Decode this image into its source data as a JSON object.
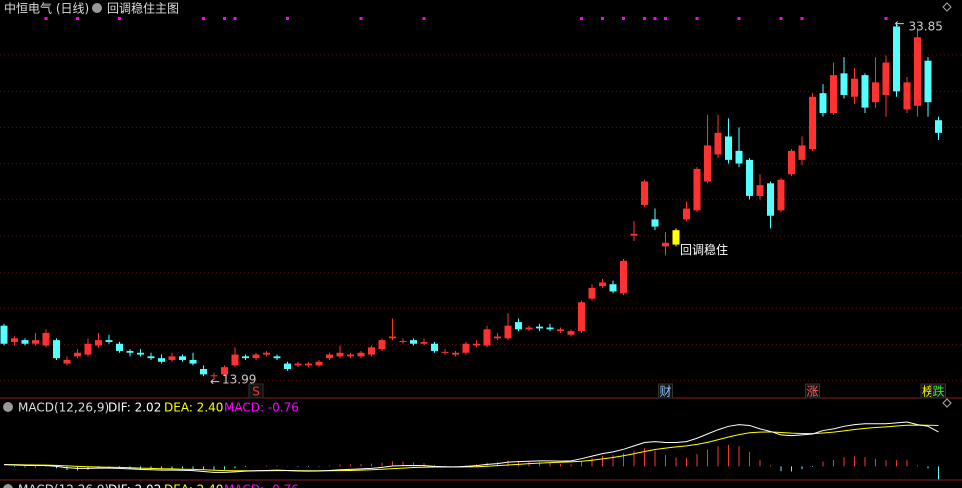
{
  "chart_data": [
    {
      "type": "candlestick",
      "title": "中恒电气 (日线)",
      "subtitle": "回调稳住主图",
      "open": [
        17.0,
        16.1,
        16.2,
        16.0,
        15.9,
        16.2,
        14.9,
        15.3,
        15.4,
        15.9,
        16.2,
        16.0,
        15.6,
        15.5,
        15.3,
        15.2,
        15.1,
        15.3,
        15.1,
        14.6,
        14.2,
        14.3,
        14.8,
        15.3,
        15.2,
        15.4,
        15.3,
        14.9,
        14.8,
        14.8,
        14.8,
        15.2,
        15.3,
        15.3,
        15.3,
        15.4,
        15.7,
        16.3,
        16.1,
        16.2,
        16.0,
        16.0,
        15.5,
        15.4,
        15.5,
        15.9,
        15.9,
        16.3,
        16.3,
        17.2,
        16.8,
        16.95,
        16.9,
        16.7,
        16.5,
        16.7,
        18.5,
        19.2,
        19.3,
        18.8,
        22.0,
        23.7,
        22.9,
        21.4,
        21.5,
        22.9,
        23.4,
        25.0,
        26.5,
        27.5,
        26.7,
        26.2,
        24.2,
        24.9,
        23.4,
        25.4,
        26.2,
        26.8,
        29.9,
        28.8,
        31.0,
        29.7,
        30.9,
        29.4,
        29.8,
        33.6,
        29.0,
        29.2,
        31.7,
        28.4
      ],
      "high": [
        17.1,
        16.4,
        16.3,
        16.6,
        16.8,
        16.3,
        15.3,
        15.7,
        16.3,
        16.6,
        16.5,
        16.1,
        15.7,
        15.7,
        15.5,
        15.4,
        15.5,
        15.4,
        15.5,
        14.8,
        14.4,
        14.8,
        15.8,
        15.4,
        15.5,
        15.6,
        15.4,
        15.0,
        15.0,
        15.0,
        15.1,
        15.5,
        15.9,
        15.5,
        15.6,
        15.9,
        16.3,
        17.4,
        16.3,
        16.3,
        16.3,
        16.1,
        15.7,
        15.6,
        16.1,
        16.2,
        17.0,
        16.6,
        17.7,
        17.4,
        17.0,
        17.1,
        17.1,
        16.9,
        16.8,
        18.4,
        19.3,
        19.6,
        19.5,
        20.7,
        22.8,
        25.1,
        23.5,
        22.2,
        22.4,
        23.9,
        25.8,
        28.7,
        28.7,
        28.5,
        28.0,
        26.3,
        25.4,
        25.0,
        25.2,
        26.8,
        27.5,
        29.9,
        30.4,
        31.6,
        31.9,
        31.3,
        31.0,
        31.9,
        32.0,
        33.85,
        30.8,
        33.5,
        31.9,
        28.6
      ],
      "low": [
        15.9,
        15.9,
        15.9,
        15.9,
        15.8,
        15.1,
        14.8,
        15.2,
        15.3,
        15.8,
        16.0,
        15.5,
        15.3,
        15.3,
        15.1,
        14.9,
        15.0,
        15.0,
        14.8,
        14.2,
        13.99,
        14.2,
        14.7,
        15.1,
        15.1,
        15.3,
        15.1,
        14.5,
        14.7,
        14.7,
        14.7,
        15.1,
        15.2,
        15.2,
        15.2,
        15.3,
        15.6,
        16.2,
        16.0,
        15.9,
        15.9,
        15.5,
        15.4,
        15.3,
        15.4,
        15.8,
        15.8,
        16.2,
        16.2,
        16.7,
        16.7,
        16.7,
        16.7,
        16.6,
        16.4,
        16.6,
        18.4,
        19.1,
        18.8,
        18.7,
        21.7,
        23.6,
        22.3,
        20.9,
        21.4,
        22.8,
        23.3,
        24.9,
        26.3,
        26.0,
        25.8,
        24.0,
        24.0,
        22.4,
        23.3,
        25.3,
        25.9,
        26.7,
        28.6,
        28.7,
        29.6,
        29.3,
        28.8,
        29.1,
        28.6,
        29.7,
        28.8,
        28.6,
        28.6,
        27.3
      ],
      "close": [
        16.0,
        16.3,
        16.0,
        16.2,
        16.6,
        15.2,
        15.1,
        15.5,
        16.0,
        16.2,
        16.1,
        15.6,
        15.5,
        15.4,
        15.2,
        15.0,
        15.3,
        15.1,
        14.9,
        14.3,
        14.25,
        14.7,
        15.4,
        15.2,
        15.4,
        15.5,
        15.2,
        14.6,
        14.9,
        14.9,
        15.0,
        15.4,
        15.5,
        15.4,
        15.5,
        15.8,
        16.2,
        16.4,
        16.15,
        16.0,
        16.1,
        15.6,
        15.55,
        15.5,
        16.0,
        16.0,
        16.8,
        16.4,
        17.0,
        16.8,
        16.9,
        16.85,
        16.8,
        16.8,
        16.7,
        18.3,
        19.1,
        19.4,
        18.9,
        20.6,
        22.1,
        25.0,
        22.5,
        21.6,
        22.3,
        23.5,
        25.7,
        27.0,
        27.7,
        26.2,
        26.0,
        24.2,
        24.8,
        23.1,
        25.1,
        26.7,
        27.0,
        29.7,
        28.8,
        30.9,
        29.8,
        30.7,
        29.1,
        30.5,
        31.6,
        30.0,
        30.5,
        33.0,
        29.4,
        27.7
      ],
      "up_color": "#ff3232",
      "down_color": "#54ffff",
      "highlight": {
        "index": 64,
        "color": "#ffff00",
        "text": "回调稳住"
      },
      "max_label": {
        "index": 85,
        "value": 33.85
      },
      "min_label": {
        "index": 20,
        "value": 13.99
      },
      "signals": {
        "color": "#ff00ff",
        "indices": [
          4,
          7,
          11,
          19,
          21,
          22,
          27,
          34,
          40,
          55,
          57,
          59,
          61,
          62,
          63,
          66,
          70,
          74,
          76,
          84
        ]
      },
      "events": [
        {
          "index": 24,
          "text": "S",
          "color": "#ff3232"
        },
        {
          "index": 63,
          "text": "财",
          "color": "#8cc8ff"
        },
        {
          "index": 77,
          "text": "涨",
          "color": "#ff6060"
        },
        {
          "index": 88,
          "text": "榜",
          "color": "#ffff00"
        },
        {
          "index": 89,
          "text": "跌",
          "color": "#40e040"
        }
      ],
      "ylim": [
        12.99,
        34.07
      ]
    },
    {
      "type": "macd",
      "title": "MACD(12,26,9)",
      "dif_label": {
        "value": 2.02,
        "label": "DIF: 2.02"
      },
      "dea_label": {
        "value": 2.4,
        "label": "DEA: 2.40"
      },
      "macd_label": {
        "value": -0.76,
        "label": "MACD: -0.76"
      },
      "dif": [
        0.1,
        0.08,
        0.06,
        0.05,
        0.05,
        0.0,
        -0.08,
        -0.12,
        -0.12,
        -0.1,
        -0.1,
        -0.12,
        -0.15,
        -0.18,
        -0.2,
        -0.22,
        -0.22,
        -0.23,
        -0.25,
        -0.3,
        -0.35,
        -0.35,
        -0.32,
        -0.28,
        -0.26,
        -0.24,
        -0.22,
        -0.24,
        -0.27,
        -0.28,
        -0.27,
        -0.24,
        -0.2,
        -0.18,
        -0.15,
        -0.12,
        -0.06,
        0.02,
        0.04,
        0.05,
        0.04,
        0.0,
        -0.02,
        -0.03,
        0.0,
        0.04,
        0.12,
        0.16,
        0.25,
        0.28,
        0.3,
        0.32,
        0.32,
        0.31,
        0.32,
        0.45,
        0.6,
        0.75,
        0.85,
        1.0,
        1.2,
        1.4,
        1.45,
        1.4,
        1.4,
        1.45,
        1.65,
        1.9,
        2.15,
        2.35,
        2.45,
        2.4,
        2.2,
        2.05,
        1.85,
        1.8,
        1.85,
        1.9,
        2.1,
        2.2,
        2.35,
        2.45,
        2.5,
        2.5,
        2.5,
        2.55,
        2.6,
        2.45,
        2.35,
        2.02
      ],
      "dea": [
        0.1,
        0.1,
        0.09,
        0.08,
        0.07,
        0.06,
        0.03,
        0.0,
        -0.02,
        -0.04,
        -0.05,
        -0.06,
        -0.08,
        -0.1,
        -0.12,
        -0.14,
        -0.15,
        -0.17,
        -0.18,
        -0.2,
        -0.23,
        -0.25,
        -0.26,
        -0.26,
        -0.26,
        -0.26,
        -0.25,
        -0.25,
        -0.25,
        -0.26,
        -0.26,
        -0.26,
        -0.25,
        -0.24,
        -0.22,
        -0.2,
        -0.17,
        -0.13,
        -0.1,
        -0.07,
        -0.05,
        -0.04,
        -0.04,
        -0.04,
        -0.03,
        -0.02,
        0.01,
        0.04,
        0.08,
        0.12,
        0.16,
        0.19,
        0.22,
        0.24,
        0.26,
        0.3,
        0.36,
        0.44,
        0.52,
        0.62,
        0.74,
        0.87,
        0.99,
        1.07,
        1.14,
        1.2,
        1.29,
        1.41,
        1.56,
        1.72,
        1.86,
        1.97,
        2.01,
        2.02,
        1.99,
        1.95,
        1.93,
        1.92,
        1.96,
        2.01,
        2.08,
        2.16,
        2.23,
        2.28,
        2.32,
        2.37,
        2.41,
        2.42,
        2.41,
        2.4
      ],
      "macd": [
        0,
        -0.04,
        -0.06,
        -0.06,
        -0.04,
        -0.12,
        -0.22,
        -0.24,
        -0.2,
        -0.12,
        -0.1,
        -0.12,
        -0.14,
        -0.16,
        -0.16,
        -0.16,
        -0.14,
        -0.12,
        -0.14,
        -0.2,
        -0.24,
        -0.2,
        -0.12,
        -0.04,
        0,
        0.04,
        0.06,
        0.02,
        -0.04,
        -0.04,
        -0.02,
        0.04,
        0.1,
        0.12,
        0.14,
        0.16,
        0.22,
        0.3,
        0.28,
        0.24,
        0.18,
        0.08,
        0.04,
        0.02,
        0.06,
        0.12,
        0.22,
        0.24,
        0.34,
        0.32,
        0.28,
        0.26,
        0.2,
        0.14,
        0.12,
        0.3,
        0.48,
        0.62,
        0.66,
        0.76,
        0.92,
        1.06,
        0.92,
        0.66,
        0.52,
        0.5,
        0.72,
        0.98,
        1.18,
        1.26,
        1.18,
        0.86,
        0.38,
        0.06,
        -0.28,
        -0.3,
        -0.16,
        -0.04,
        0.28,
        0.38,
        0.54,
        0.58,
        0.54,
        0.44,
        0.36,
        0.36,
        0.38,
        0.06,
        -0.12,
        -0.76
      ],
      "dif_color": "#ffffff",
      "dea_color": "#ffff00",
      "macd_color": "#ff00ff",
      "up_color": "#ff3232",
      "down_color": "#54ffff",
      "ylim": [
        -0.8,
        3.6
      ]
    }
  ]
}
